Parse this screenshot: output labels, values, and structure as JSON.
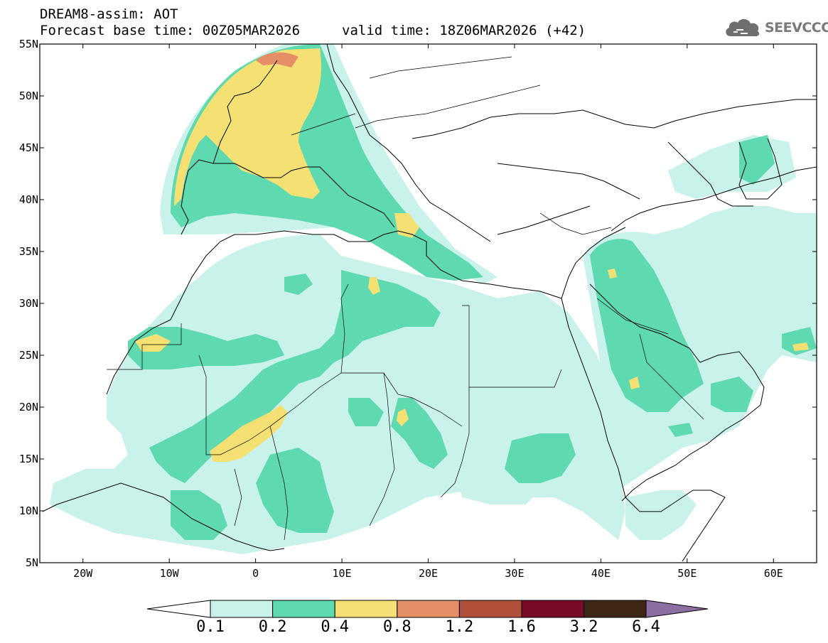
{
  "header": {
    "title": "DREAM8-assim: AOT",
    "base_time": "Forecast base time: 00Z05MAR2026",
    "valid_time": "valid time: 18Z06MAR2026 (+42)"
  },
  "logo": {
    "text": "SEEVCCC",
    "icon": "cloud-icon"
  },
  "map": {
    "lat_range": [
      5,
      55
    ],
    "lon_range": [
      -25,
      65
    ],
    "lat_ticks": [
      "55N",
      "50N",
      "45N",
      "40N",
      "35N",
      "30N",
      "25N",
      "20N",
      "15N",
      "10N",
      "5N"
    ],
    "lon_ticks": [
      "20W",
      "10W",
      "0",
      "10E",
      "20E",
      "30E",
      "40E",
      "50E",
      "60E"
    ]
  },
  "colorbar": {
    "labels": [
      "0.1",
      "0.2",
      "0.4",
      "0.8",
      "1.2",
      "1.6",
      "3.2",
      "6.4"
    ],
    "colors": {
      "under": "#ffffff",
      "bins": [
        "#c9f2ea",
        "#5ed9b0",
        "#f5e173",
        "#e58f67",
        "#b1503b",
        "#7a0a27",
        "#3e2716"
      ],
      "over": "#8d6ea3"
    }
  }
}
